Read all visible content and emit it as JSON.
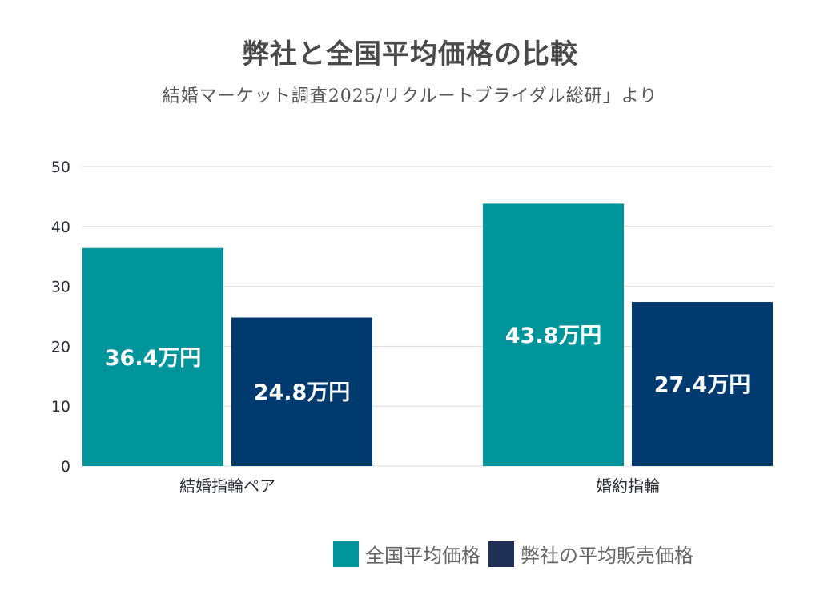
{
  "title": "弊社と全国平均価格の比較",
  "subtitle": "結婚マーケット調査2025/リクルートブライダル総研」より",
  "colors": {
    "national": "#00959a",
    "company": "#003a6e",
    "company_legend": "#1f2f55",
    "grid": "#d9d9d9"
  },
  "chart_data": {
    "type": "bar",
    "categories": [
      "結婚指輪ペア",
      "婚約指輪"
    ],
    "series": [
      {
        "name": "全国平均価格",
        "values": [
          36.4,
          43.8
        ],
        "labels": [
          "36.4万円",
          "43.8万円"
        ]
      },
      {
        "name": "弊社の平均販売価格",
        "values": [
          24.8,
          27.4
        ],
        "labels": [
          "24.8万円",
          "27.4万円"
        ]
      }
    ],
    "yticks": [
      "0",
      "10",
      "20",
      "30",
      "40",
      "50"
    ],
    "ylim": [
      0,
      50
    ],
    "grid": true,
    "legend_position": "bottom-right"
  },
  "legend": [
    {
      "label": "全国平均価格",
      "icon": "teal-square"
    },
    {
      "label": "弊社の平均販売価格",
      "icon": "navy-square"
    }
  ]
}
